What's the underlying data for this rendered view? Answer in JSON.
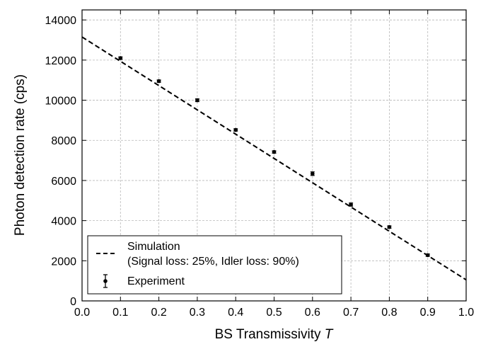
{
  "chart_data": {
    "type": "line",
    "xlabel": "BS Transmissivity",
    "xlabel_var": "T",
    "ylabel": "Photon detection rate (cps)",
    "xlim": [
      0.0,
      1.0
    ],
    "ylim": [
      0,
      14500
    ],
    "xticks": [
      0.0,
      0.1,
      0.2,
      0.3,
      0.4,
      0.5,
      0.6,
      0.7,
      0.8,
      0.9,
      1.0
    ],
    "xtick_labels": [
      "0.0",
      "0.1",
      "0.2",
      "0.3",
      "0.4",
      "0.5",
      "0.6",
      "0.7",
      "0.8",
      "0.9",
      "1.0"
    ],
    "yticks": [
      0,
      2000,
      4000,
      6000,
      8000,
      10000,
      12000,
      14000
    ],
    "ytick_labels": [
      "0",
      "2000",
      "4000",
      "6000",
      "8000",
      "10000",
      "12000",
      "14000"
    ],
    "grid": true,
    "legend_position": "bottom-left",
    "series": [
      {
        "name": "Simulation",
        "name_line2": "(Signal loss: 25%, Idler loss: 90%)",
        "style": "dashed-line",
        "x": [
          0.0,
          1.0
        ],
        "y": [
          13150,
          1050
        ]
      },
      {
        "name": "Experiment",
        "style": "points-with-errorbars",
        "x": [
          0.1,
          0.2,
          0.3,
          0.4,
          0.5,
          0.6,
          0.7,
          0.8,
          0.9
        ],
        "y": [
          12100,
          10950,
          10000,
          8520,
          7420,
          6340,
          4800,
          3680,
          2280
        ],
        "err": [
          60,
          60,
          70,
          60,
          60,
          90,
          80,
          60,
          60
        ]
      }
    ]
  }
}
